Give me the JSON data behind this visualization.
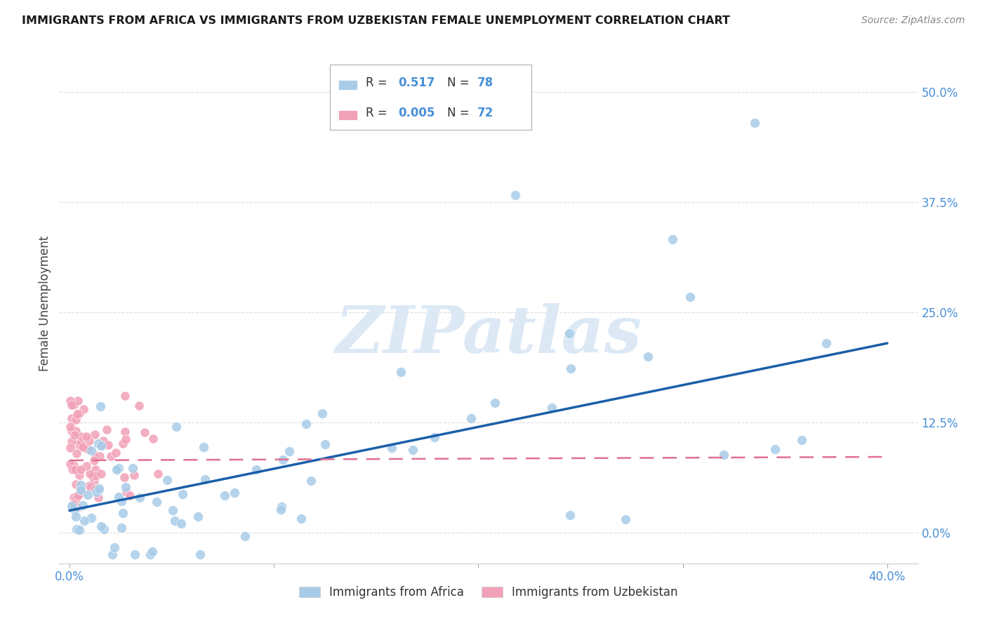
{
  "title": "IMMIGRANTS FROM AFRICA VS IMMIGRANTS FROM UZBEKISTAN FEMALE UNEMPLOYMENT CORRELATION CHART",
  "source": "Source: ZipAtlas.com",
  "ylabel": "Female Unemployment",
  "ytick_labels": [
    "0.0%",
    "12.5%",
    "25.0%",
    "37.5%",
    "50.0%"
  ],
  "ytick_values": [
    0.0,
    0.125,
    0.25,
    0.375,
    0.5
  ],
  "xlim": [
    -0.005,
    0.415
  ],
  "ylim": [
    -0.035,
    0.555
  ],
  "legend_africa_r": "0.517",
  "legend_africa_n": "78",
  "legend_uzbekistan_r": "0.005",
  "legend_uzbekistan_n": "72",
  "africa_color": "#A8CCE8",
  "uzbekistan_color": "#F2A0B8",
  "africa_line_color": "#1A5FA8",
  "uzbekistan_line_color": "#E07090",
  "background_color": "#ffffff",
  "grid_color": "#DDDDDD",
  "africa_line_x0": 0.0,
  "africa_line_x1": 0.4,
  "africa_line_y0": 0.025,
  "africa_line_y1": 0.215,
  "uzbekistan_line_x0": 0.0,
  "uzbekistan_line_x1": 0.4,
  "uzbekistan_line_y0": 0.082,
  "uzbekistan_line_y1": 0.086
}
